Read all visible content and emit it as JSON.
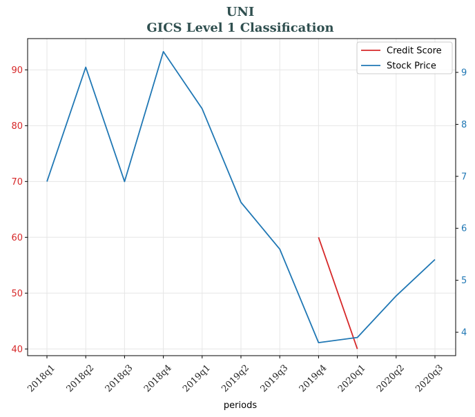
{
  "chart_data": {
    "type": "line",
    "title": "UNI",
    "subtitle": "GICS Level 1 Classification",
    "xlabel": "periods",
    "categories": [
      "2018q1",
      "2018q2",
      "2018q3",
      "2018q4",
      "2019q1",
      "2019q2",
      "2019q3",
      "2019q4",
      "2020q1",
      "2020q2",
      "2020q3"
    ],
    "left_axis": {
      "ylim": [
        38.8,
        95.6
      ],
      "ticks": [
        40,
        50,
        60,
        70,
        80,
        90
      ],
      "color": "#d62728"
    },
    "right_axis": {
      "ylim": [
        3.55,
        9.65
      ],
      "ticks": [
        4,
        5,
        6,
        7,
        8,
        9
      ],
      "color": "#1f77b4"
    },
    "series": [
      {
        "name": "Credit Score",
        "axis": "left",
        "color": "#d62728",
        "values": [
          null,
          null,
          null,
          null,
          null,
          null,
          null,
          60,
          40,
          null,
          null
        ]
      },
      {
        "name": "Stock Price",
        "axis": "right",
        "color": "#1f77b4",
        "values": [
          6.9,
          9.1,
          6.9,
          9.4,
          8.3,
          6.5,
          5.6,
          3.8,
          3.9,
          4.7,
          5.4
        ]
      }
    ],
    "legend": "top-right",
    "grid": true
  }
}
